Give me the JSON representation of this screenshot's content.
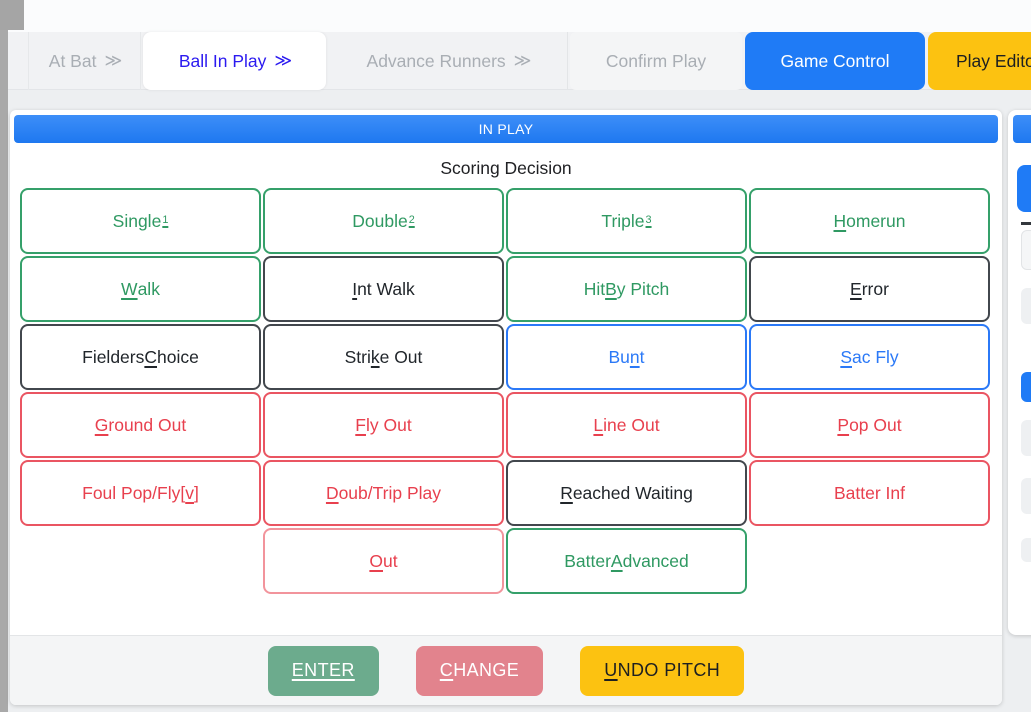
{
  "colors": {
    "accent_blue": "#1f7bf6",
    "header_blue": "#2b80f6",
    "active_tab_text": "#2b1af0",
    "green": "#2f9962",
    "dark": "#21262b",
    "blue": "#2b79f7",
    "red": "#e8404e",
    "out_border_light_red": "#f2949c",
    "enter_green": "#6cab8d",
    "change_pink": "#e2838d",
    "undo_yellow": "#fcc211"
  },
  "tabbar": {
    "tabs": [
      {
        "label": "At Bat",
        "chevron": "≫"
      },
      {
        "label": "Ball In Play",
        "chevron": "≫"
      },
      {
        "label": "Advance Runners",
        "chevron": "≫"
      },
      {
        "label": "Confirm Play",
        "chevron": ""
      }
    ],
    "game_control": "Game Control",
    "play_editor": "Play Editor"
  },
  "panel": {
    "header": "IN PLAY",
    "title": "Scoring Decision",
    "grid": [
      [
        {
          "pre": "Single",
          "key": "",
          "post": "",
          "sup": "1"
        },
        {
          "pre": "Double",
          "key": "",
          "post": "",
          "sup": "2"
        },
        {
          "pre": "Triple",
          "key": "",
          "post": "",
          "sup": "3"
        },
        {
          "pre": "",
          "key": "H",
          "post": "omerun"
        }
      ],
      [
        {
          "pre": "",
          "key": "W",
          "post": "alk"
        },
        {
          "pre": "",
          "key": "I",
          "post": "nt Walk"
        },
        {
          "pre": "Hit ",
          "key": "B",
          "post": "y Pitch"
        },
        {
          "pre": "",
          "key": "E",
          "post": "rror"
        }
      ],
      [
        {
          "pre": "Fielders ",
          "key": "C",
          "post": "hoice"
        },
        {
          "pre": "Stri",
          "key": "k",
          "post": "e Out"
        },
        {
          "pre": "Bu",
          "key": "n",
          "post": "t"
        },
        {
          "pre": "",
          "key": "S",
          "post": "ac Fly"
        }
      ],
      [
        {
          "pre": "",
          "key": "G",
          "post": "round Out"
        },
        {
          "pre": "",
          "key": "F",
          "post": "ly Out"
        },
        {
          "pre": "",
          "key": "L",
          "post": "ine Out"
        },
        {
          "pre": "",
          "key": "P",
          "post": "op Out"
        }
      ],
      [
        {
          "pre": "Foul Pop/Fly[",
          "key": "v",
          "post": "]"
        },
        {
          "pre": "",
          "key": "D",
          "post": "oub/Trip Play"
        },
        {
          "pre": "",
          "key": "R",
          "post": "eached Waiting"
        },
        {
          "pre": "Batter Inf",
          "key": "",
          "post": ""
        }
      ],
      [
        {
          "pre": "",
          "key": "O",
          "post": "ut"
        },
        {
          "pre": "Batter ",
          "key": "A",
          "post": "dvanced"
        }
      ]
    ],
    "actions": {
      "enter": {
        "pre": "",
        "key": "ENTER",
        "post": ""
      },
      "change": {
        "pre": "",
        "key": "C",
        "post": "HANGE"
      },
      "undo": {
        "pre": "",
        "key": "U",
        "post": "NDO PITCH"
      }
    }
  }
}
